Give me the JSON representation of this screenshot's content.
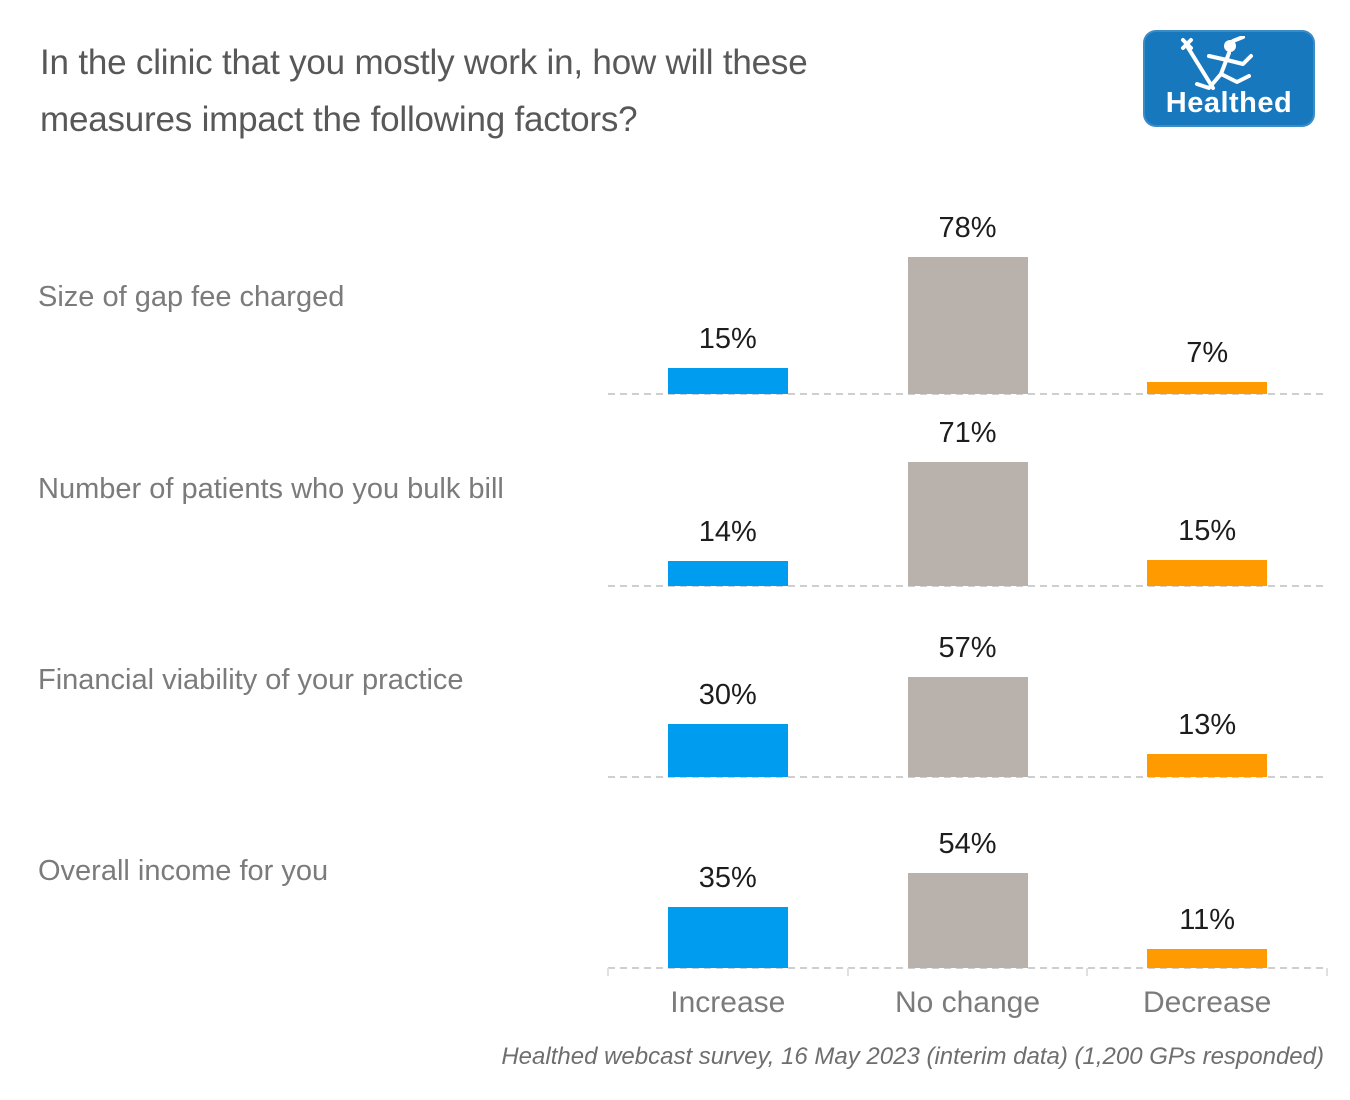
{
  "title": {
    "lines": [
      "In the clinic that you mostly work in, how will these",
      "measures impact the following factors?"
    ]
  },
  "logo": {
    "text": "Healthed",
    "icon": "hermes-caduceus-icon",
    "bg_color": "#1878BE"
  },
  "chart_data": {
    "type": "bar",
    "layout": "small-multiples-rows",
    "categories": [
      "Size of gap fee charged",
      "Number of patients who you bulk bill",
      "Financial viability of your practice",
      "Overall income for you"
    ],
    "columns": [
      "Increase",
      "No change",
      "Decrease"
    ],
    "series": [
      {
        "name": "Increase",
        "color": "#009CF0",
        "values": [
          15,
          14,
          30,
          35
        ]
      },
      {
        "name": "No change",
        "color": "#B9B1AB",
        "values": [
          78,
          71,
          57,
          54
        ]
      },
      {
        "name": "Decrease",
        "color": "#FF9A00",
        "values": [
          7,
          15,
          13,
          11
        ]
      }
    ],
    "value_suffix": "%",
    "value_labels_shown": true,
    "ylim": [
      0,
      100
    ],
    "gridlines": "dashed-row-baselines",
    "axis_ticks": "column-boundaries"
  },
  "footer": "Healthed webcast survey, 16 May 2023 (interim data) (1,200 GPs responded)"
}
